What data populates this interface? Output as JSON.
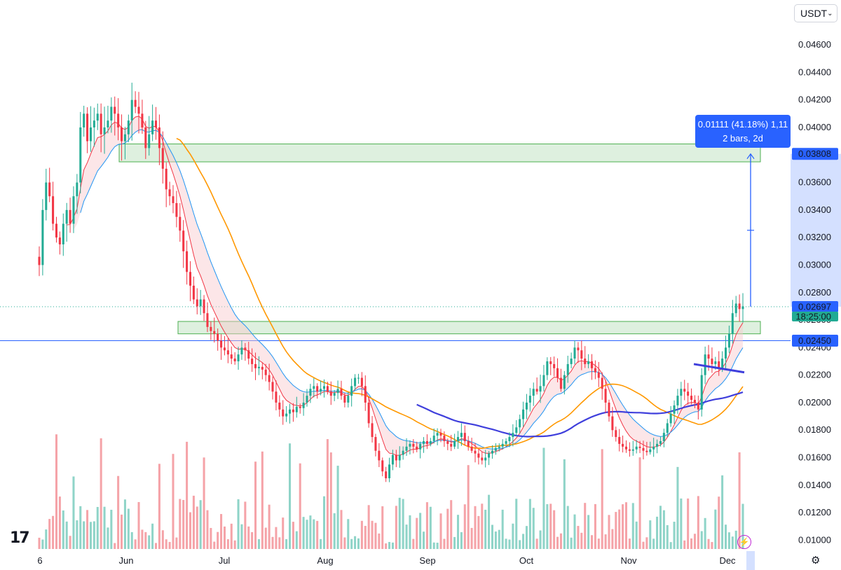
{
  "toolbar": {
    "currency": "USDT"
  },
  "measure_tooltip": {
    "line1": "0.01111 (41.18%) 1,11",
    "line2": "2 bars, 2d"
  },
  "price_labels": {
    "target": {
      "value": "0.03808",
      "color": "#2962ff"
    },
    "last": {
      "value": "0.02697",
      "color": "#2962ff"
    },
    "countdown": {
      "value": "18:25:00",
      "color": "#22ab94"
    },
    "level": {
      "value": "0.02450",
      "color": "#2962ff"
    }
  },
  "colors": {
    "up": "#22ab94",
    "down": "#f23645",
    "volume_up": "#8fd4c8",
    "volume_down": "#f5a3a8",
    "ema_fast": "#f23645",
    "ema_slow": "#2196f3",
    "ma_orange": "#ff9800",
    "ma_blue": "#3f3fdc",
    "zone": "#c8e6c9",
    "zone_border": "#4caf50"
  },
  "chart_data": {
    "type": "candlestick",
    "pair_quote": "USDT",
    "y_ticks": [
      "0.04600",
      "0.04400",
      "0.04200",
      "0.04000",
      "0.03800",
      "0.03600",
      "0.03400",
      "0.03200",
      "0.03000",
      "0.02800",
      "0.02600",
      "0.02400",
      "0.02200",
      "0.02000",
      "0.01800",
      "0.01600",
      "0.01400",
      "0.01200",
      "0.01000"
    ],
    "x_ticks": [
      "6",
      "Jun",
      "Jul",
      "Aug",
      "Sep",
      "Oct",
      "Nov",
      "Dec"
    ],
    "ylim": [
      0.0088,
      0.0485
    ],
    "last_price": 0.02697,
    "horizontal_line": 0.0245,
    "zones": [
      {
        "from": 0.0375,
        "to": 0.0388
      },
      {
        "from": 0.025,
        "to": 0.0259
      }
    ],
    "measurement": {
      "from": 0.02697,
      "to": 0.03808,
      "change": "0.01111 (41.18%)",
      "bars": "2 bars, 2d"
    },
    "volume_ratio": 0.35,
    "indicators": [
      "EMA fast (red)",
      "EMA slow (blue)",
      "MA (orange)",
      "MA (dark blue)"
    ],
    "series": {
      "close": [
        0.03,
        0.034,
        0.036,
        0.035,
        0.033,
        0.032,
        0.0315,
        0.033,
        0.034,
        0.033,
        0.035,
        0.036,
        0.04,
        0.041,
        0.039,
        0.04,
        0.0405,
        0.041,
        0.0395,
        0.04,
        0.0405,
        0.0415,
        0.041,
        0.04,
        0.039,
        0.0395,
        0.0405,
        0.042,
        0.0415,
        0.041,
        0.04,
        0.0385,
        0.0395,
        0.0405,
        0.04,
        0.0385,
        0.037,
        0.0355,
        0.035,
        0.0345,
        0.0335,
        0.0325,
        0.031,
        0.0295,
        0.0285,
        0.0275,
        0.027,
        0.0275,
        0.0265,
        0.0255,
        0.0252,
        0.025,
        0.0245,
        0.024,
        0.0238,
        0.0235,
        0.0232,
        0.023,
        0.0235,
        0.024,
        0.0238,
        0.0232,
        0.0228,
        0.0225,
        0.0226,
        0.0224,
        0.022,
        0.0215,
        0.0208,
        0.02,
        0.0195,
        0.019,
        0.0192,
        0.0195,
        0.0193,
        0.0197,
        0.0196,
        0.02,
        0.0205,
        0.021,
        0.0212,
        0.0208,
        0.021,
        0.0212,
        0.0208,
        0.0205,
        0.0207,
        0.021,
        0.0205,
        0.02,
        0.0205,
        0.0212,
        0.0218,
        0.0218,
        0.0212,
        0.02,
        0.0185,
        0.0175,
        0.0165,
        0.0158,
        0.015,
        0.0145,
        0.0155,
        0.0162,
        0.0158,
        0.0162,
        0.0165,
        0.0168,
        0.017,
        0.0168,
        0.0166,
        0.017,
        0.0172,
        0.017,
        0.0172,
        0.0176,
        0.0178,
        0.0176,
        0.0172,
        0.017,
        0.0168,
        0.0172,
        0.0175,
        0.0178,
        0.0172,
        0.0168,
        0.0165,
        0.0163,
        0.016,
        0.0158,
        0.016,
        0.0163,
        0.0165,
        0.0167,
        0.0168,
        0.017,
        0.0172,
        0.0175,
        0.0178,
        0.0182,
        0.0188,
        0.0195,
        0.02,
        0.0205,
        0.021,
        0.0208,
        0.0212,
        0.022,
        0.023,
        0.0228,
        0.0225,
        0.0218,
        0.021,
        0.022,
        0.0228,
        0.0232,
        0.024,
        0.0238,
        0.0232,
        0.0228,
        0.023,
        0.0225,
        0.0222,
        0.0218,
        0.021,
        0.02,
        0.019,
        0.018,
        0.0175,
        0.017,
        0.0168,
        0.0166,
        0.0165,
        0.0166,
        0.0168,
        0.0167,
        0.0165,
        0.0164,
        0.0166,
        0.0168,
        0.017,
        0.0172,
        0.0178,
        0.0185,
        0.0192,
        0.0198,
        0.0205,
        0.021,
        0.0208,
        0.0205,
        0.0202,
        0.02,
        0.0195,
        0.022,
        0.0235,
        0.0232,
        0.0228,
        0.023,
        0.0225,
        0.0232,
        0.024,
        0.025,
        0.0265,
        0.0272,
        0.0268,
        0.027
      ]
    }
  }
}
